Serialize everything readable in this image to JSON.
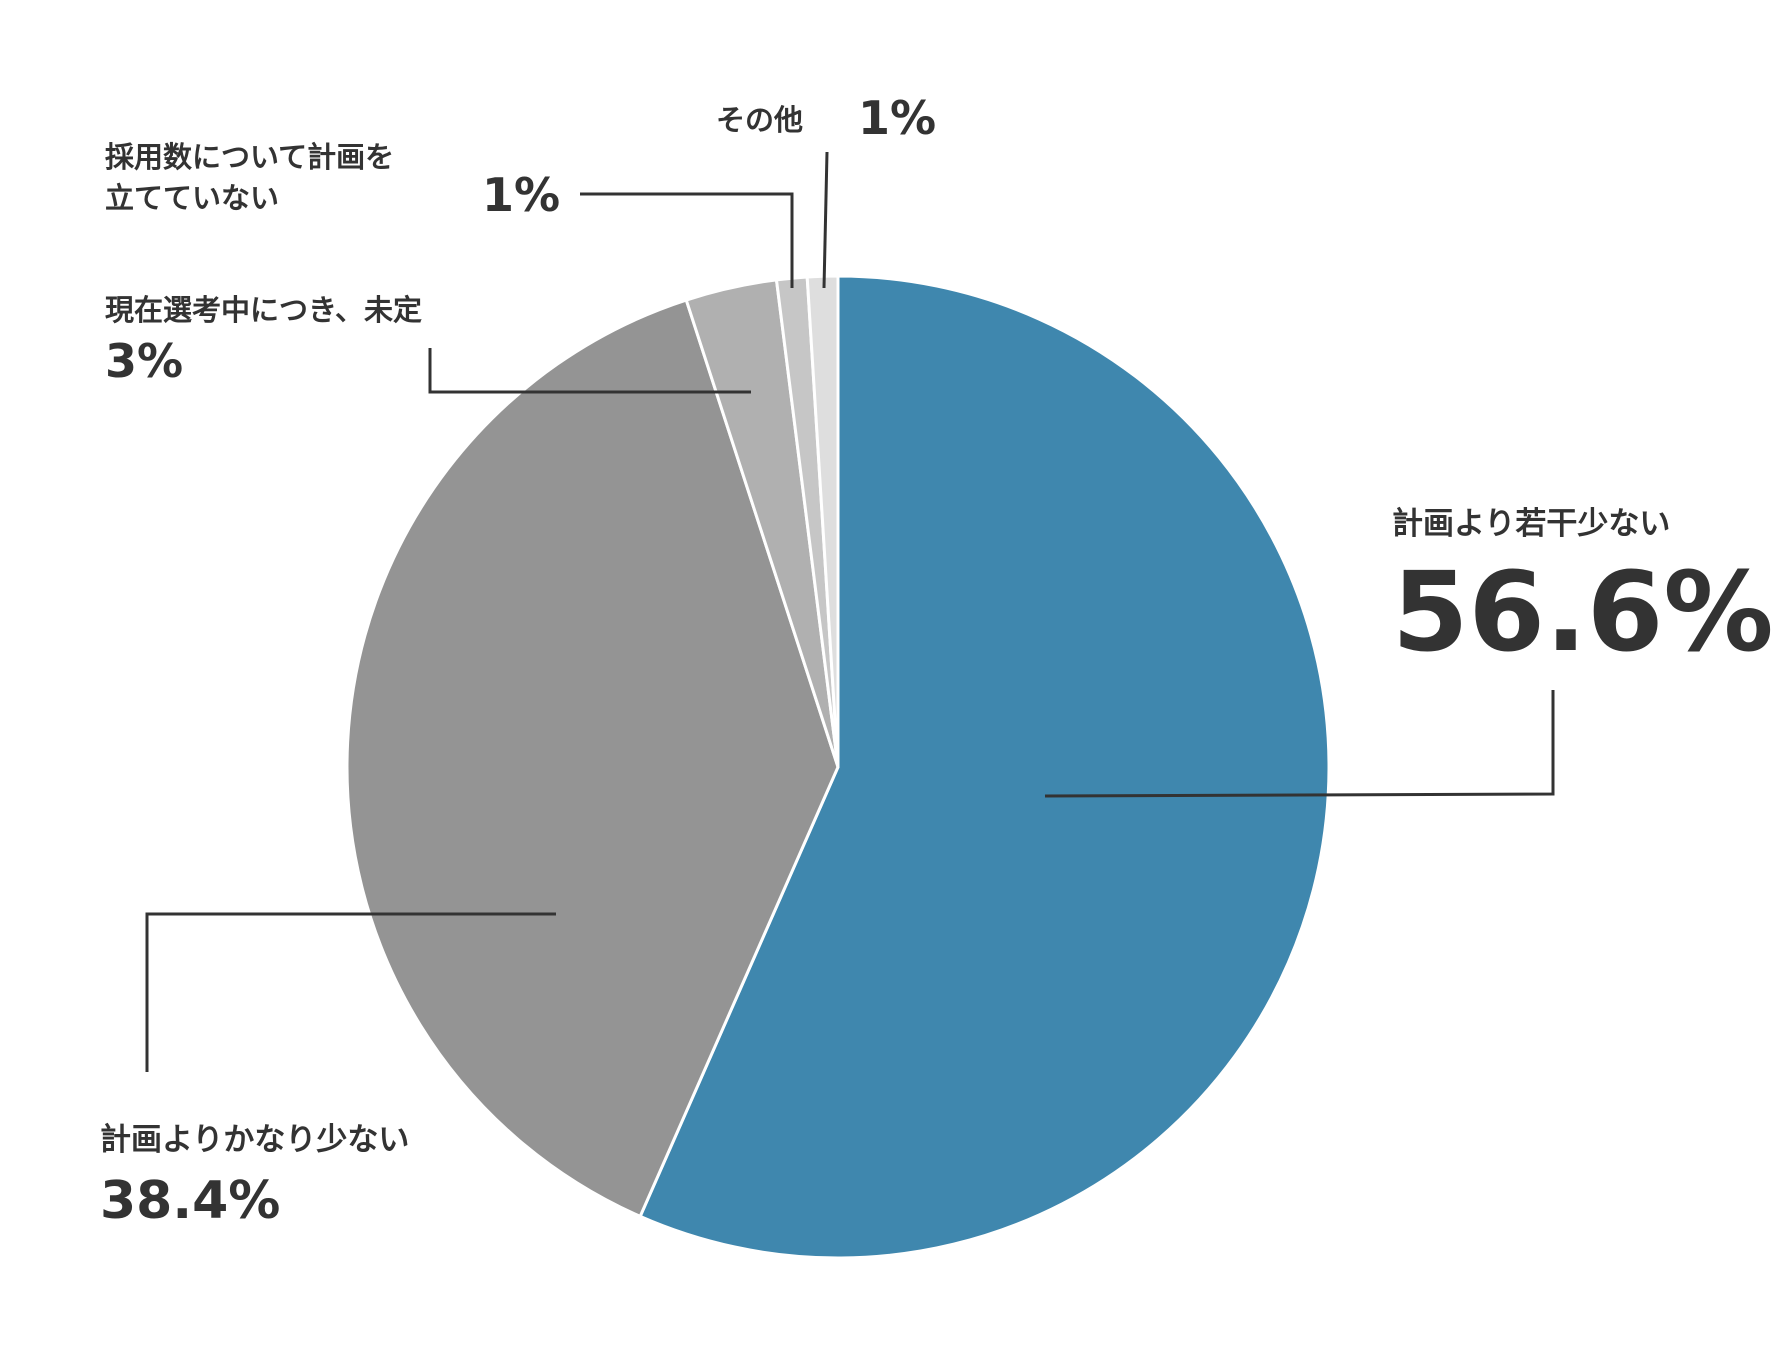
{
  "chart_data": {
    "type": "pie",
    "slices": [
      {
        "label": "計画より若干少ない",
        "value": 56.6,
        "value_label": "56.6%",
        "color": "#3f87ae"
      },
      {
        "label": "計画よりかなり少ない",
        "value": 38.4,
        "value_label": "38.4%",
        "color": "#949494"
      },
      {
        "label": "現在選考中につき、未定",
        "value": 3,
        "value_label": "3%",
        "color": "#b0b0b0"
      },
      {
        "label_lines": [
          "採用数について計画を",
          "立てていない"
        ],
        "value": 1,
        "value_label": "1%",
        "color": "#c6c6c6"
      },
      {
        "label": "その他",
        "value": 1,
        "value_label": "1%",
        "color": "#dedede"
      }
    ]
  }
}
